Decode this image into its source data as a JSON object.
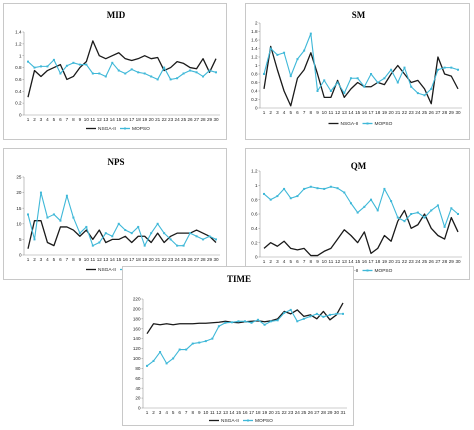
{
  "colors": {
    "nsga": "#1a1a1a",
    "mopso": "#3fb8d8",
    "grid": "#999999"
  },
  "chart_data": [
    {
      "type": "line",
      "title": "MID",
      "x": [
        1,
        2,
        3,
        4,
        5,
        6,
        7,
        8,
        9,
        10,
        11,
        12,
        13,
        14,
        15,
        16,
        17,
        18,
        19,
        20,
        21,
        22,
        23,
        24,
        25,
        26,
        27,
        28,
        29,
        30
      ],
      "yticks": [
        "0",
        "0.2",
        "0.4",
        "0.6",
        "0.8",
        "1",
        "1.2",
        "1.4"
      ],
      "ylim": [
        0,
        1.4
      ],
      "series": [
        {
          "name": "NSGA-II",
          "values": [
            0.3,
            0.75,
            0.65,
            0.75,
            0.8,
            0.85,
            0.6,
            0.65,
            0.8,
            0.9,
            1.25,
            1.0,
            0.95,
            1.0,
            1.05,
            0.95,
            0.92,
            0.95,
            1.0,
            0.95,
            0.97,
            0.75,
            0.8,
            0.9,
            0.87,
            0.8,
            0.78,
            0.95,
            0.72,
            0.95
          ]
        },
        {
          "name": "MOPSO",
          "values": [
            0.9,
            0.8,
            0.82,
            0.82,
            0.93,
            0.7,
            0.83,
            0.88,
            0.85,
            0.85,
            0.7,
            0.7,
            0.65,
            0.88,
            0.75,
            0.7,
            0.77,
            0.72,
            0.7,
            0.65,
            0.6,
            0.8,
            0.6,
            0.62,
            0.7,
            0.75,
            0.72,
            0.65,
            0.75,
            0.72
          ]
        }
      ]
    },
    {
      "type": "line",
      "title": "SM",
      "x": [
        1,
        2,
        3,
        4,
        5,
        6,
        7,
        8,
        9,
        10,
        11,
        12,
        13,
        14,
        15,
        16,
        17,
        18,
        19,
        20,
        21,
        22,
        23,
        24,
        25,
        26,
        27,
        28,
        29,
        30
      ],
      "yticks": [
        "0",
        "0.2",
        "0.4",
        "0.6",
        "0.8",
        "1",
        "1.2",
        "1.4",
        "1.6",
        "1.8",
        "2"
      ],
      "ylim": [
        0,
        2
      ],
      "series": [
        {
          "name": "NSGA-II",
          "values": [
            0.45,
            1.45,
            0.9,
            0.4,
            0.05,
            0.7,
            0.9,
            1.3,
            0.8,
            0.25,
            0.25,
            0.65,
            0.25,
            0.45,
            0.6,
            0.5,
            0.5,
            0.6,
            0.55,
            0.8,
            1.0,
            0.8,
            0.6,
            0.65,
            0.45,
            0.1,
            1.2,
            0.8,
            0.75,
            0.45
          ]
        },
        {
          "name": "MOPSO",
          "values": [
            0.8,
            1.4,
            1.25,
            1.3,
            0.75,
            1.15,
            1.35,
            1.75,
            0.4,
            0.65,
            0.4,
            0.6,
            0.35,
            0.7,
            0.7,
            0.5,
            0.8,
            0.6,
            0.7,
            0.9,
            0.6,
            0.95,
            0.5,
            0.35,
            0.3,
            0.45,
            0.9,
            0.95,
            0.95,
            0.9
          ]
        }
      ]
    },
    {
      "type": "line",
      "title": "NPS",
      "x": [
        1,
        2,
        3,
        4,
        5,
        6,
        7,
        8,
        9,
        10,
        11,
        12,
        13,
        14,
        15,
        16,
        17,
        18,
        19,
        20,
        21,
        22,
        23,
        24,
        25,
        26,
        27,
        28,
        29,
        30
      ],
      "yticks": [
        "0",
        "5",
        "10",
        "15",
        "20",
        "25"
      ],
      "ylim": [
        0,
        25
      ],
      "series": [
        {
          "name": "NSGA-II",
          "values": [
            2,
            11,
            11,
            4,
            3,
            9,
            9,
            8,
            6,
            8,
            5,
            8,
            4,
            5,
            5,
            6,
            4,
            6,
            6,
            4,
            7,
            4,
            6,
            7,
            7,
            7,
            8,
            7,
            6,
            4
          ]
        },
        {
          "name": "MOPSO",
          "values": [
            13,
            5,
            20,
            12,
            13,
            11,
            19,
            12,
            7,
            9,
            3,
            4,
            7,
            6,
            10,
            8,
            7,
            9,
            3,
            7,
            10,
            7,
            5,
            3,
            3,
            7,
            6,
            5,
            6,
            5
          ]
        }
      ]
    },
    {
      "type": "line",
      "title": "QM",
      "x": [
        1,
        2,
        3,
        4,
        5,
        6,
        7,
        8,
        9,
        10,
        11,
        12,
        13,
        14,
        15,
        16,
        17,
        18,
        19,
        20,
        21,
        22,
        23,
        24,
        25,
        26,
        27,
        28,
        29,
        30
      ],
      "yticks": [
        "0",
        "0.2",
        "0.4",
        "0.6",
        "0.8",
        "1",
        "1.2"
      ],
      "ylim": [
        0,
        1.2
      ],
      "series": [
        {
          "name": "NSGA-II",
          "values": [
            0.12,
            0.2,
            0.15,
            0.22,
            0.12,
            0.1,
            0.12,
            0.02,
            0.02,
            0.08,
            0.12,
            0.25,
            0.38,
            0.3,
            0.2,
            0.35,
            0.05,
            0.12,
            0.3,
            0.22,
            0.5,
            0.65,
            0.4,
            0.45,
            0.6,
            0.4,
            0.3,
            0.25,
            0.55,
            0.35
          ]
        },
        {
          "name": "MOPSO",
          "values": [
            0.88,
            0.8,
            0.85,
            0.95,
            0.82,
            0.85,
            0.95,
            0.98,
            0.96,
            0.95,
            0.98,
            0.96,
            0.9,
            0.75,
            0.62,
            0.7,
            0.8,
            0.65,
            0.95,
            0.78,
            0.55,
            0.5,
            0.6,
            0.62,
            0.55,
            0.65,
            0.72,
            0.42,
            0.68,
            0.6
          ]
        }
      ]
    },
    {
      "type": "line",
      "title": "TIME",
      "x": [
        1,
        2,
        3,
        4,
        5,
        6,
        7,
        8,
        9,
        10,
        11,
        12,
        13,
        14,
        15,
        16,
        17,
        18,
        19,
        20,
        21,
        22,
        23,
        24,
        25,
        26,
        27,
        28,
        29,
        30,
        31
      ],
      "yticks": [
        "0",
        "20",
        "40",
        "60",
        "80",
        "100",
        "120",
        "140",
        "160",
        "180",
        "200",
        "220"
      ],
      "ylim": [
        0,
        220
      ],
      "series": [
        {
          "name": "NSGA-II",
          "values": [
            150,
            170,
            168,
            170,
            168,
            170,
            170,
            170,
            171,
            171,
            172,
            173,
            175,
            173,
            172,
            174,
            175,
            176,
            174,
            176,
            180,
            195,
            190,
            198,
            185,
            188,
            180,
            195,
            178,
            188,
            212
          ]
        },
        {
          "name": "MOPSO",
          "values": [
            85,
            95,
            113,
            90,
            100,
            118,
            118,
            130,
            132,
            135,
            140,
            165,
            172,
            173,
            175,
            175,
            172,
            178,
            168,
            175,
            177,
            192,
            198,
            175,
            180,
            185,
            190,
            184,
            188,
            190,
            190
          ]
        }
      ]
    }
  ]
}
